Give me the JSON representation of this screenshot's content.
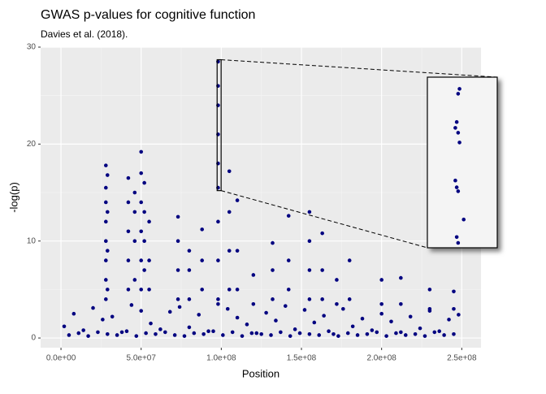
{
  "chart_data": {
    "type": "scatter",
    "title": "GWAS p-values for cognitive function",
    "subtitle": "Davies et al. (2018).",
    "x_label": "Position",
    "y_label": "-log(p)",
    "color": "#000080",
    "grid": true,
    "xlim": [
      -12700000,
      262000000
    ],
    "ylim": [
      -1,
      30
    ],
    "xticks": [
      {
        "value": 0,
        "label": "0.0e+00"
      },
      {
        "value": 50000000,
        "label": "5.0e+07"
      },
      {
        "value": 100000000,
        "label": "1.0e+08"
      },
      {
        "value": 150000000,
        "label": "1.5e+08"
      },
      {
        "value": 200000000,
        "label": "2.0e+08"
      },
      {
        "value": 250000000,
        "label": "2.5e+08"
      }
    ],
    "yticks": [
      0,
      10,
      20,
      30
    ],
    "x": [
      2000000,
      8000000,
      14000000,
      20000000,
      26000000,
      32000000,
      38000000,
      44000000,
      50000000,
      56000000,
      62000000,
      68000000,
      74000000,
      80000000,
      86000000,
      92000000,
      98000000,
      104000000,
      110000000,
      116000000,
      122000000,
      128000000,
      134000000,
      140000000,
      146000000,
      152000000,
      158000000,
      164000000,
      170000000,
      176000000,
      182000000,
      188000000,
      194000000,
      200000000,
      206000000,
      212000000,
      218000000,
      224000000,
      230000000,
      236000000,
      242000000,
      248000000,
      5000000,
      11000000,
      17000000,
      23000000,
      29000000,
      35000000,
      41000000,
      47000000,
      53000000,
      59000000,
      65000000,
      71000000,
      77000000,
      83000000,
      89000000,
      95000000,
      101000000,
      107000000,
      113000000,
      119000000,
      125000000,
      131000000,
      137000000,
      143000000,
      149000000,
      155000000,
      161000000,
      167000000,
      173000000,
      179000000,
      185000000,
      191000000,
      197000000,
      203000000,
      209000000,
      215000000,
      221000000,
      227000000,
      233000000,
      239000000,
      245000000,
      28000000,
      28000000,
      28000000,
      28000000,
      28000000,
      28000000,
      28000000,
      28000000,
      29000000,
      29000000,
      29000000,
      29000000,
      42000000,
      42000000,
      42000000,
      42000000,
      42000000,
      46000000,
      46000000,
      46000000,
      46000000,
      50000000,
      50000000,
      50000000,
      50000000,
      50000000,
      50000000,
      52000000,
      52000000,
      52000000,
      52000000,
      55000000,
      55000000,
      55000000,
      73000000,
      73000000,
      73000000,
      73000000,
      80000000,
      80000000,
      80000000,
      88000000,
      88000000,
      88000000,
      98000000,
      98000000,
      98000000,
      98000000,
      98000000,
      98000000,
      98000000,
      98000000,
      98000000,
      105000000,
      105000000,
      105000000,
      105000000,
      110000000,
      110000000,
      110000000,
      120000000,
      120000000,
      132000000,
      132000000,
      132000000,
      142000000,
      142000000,
      142000000,
      155000000,
      155000000,
      155000000,
      155000000,
      163000000,
      163000000,
      163000000,
      172000000,
      172000000,
      180000000,
      180000000,
      200000000,
      200000000,
      212000000,
      212000000,
      230000000,
      230000000,
      245000000,
      245000000
    ],
    "y": [
      1.2,
      2.5,
      0.8,
      3.1,
      1.9,
      2.2,
      0.6,
      3.4,
      2.8,
      1.5,
      0.9,
      2.7,
      3.2,
      1.1,
      2.4,
      0.7,
      3.5,
      3.0,
      2.1,
      1.4,
      0.5,
      2.6,
      1.8,
      3.3,
      0.9,
      2.9,
      1.6,
      2.3,
      0.4,
      3.0,
      1.2,
      2.0,
      0.8,
      2.5,
      1.7,
      0.6,
      2.2,
      1.0,
      2.8,
      0.7,
      1.9,
      2.4,
      0.3,
      0.5,
      0.2,
      0.6,
      0.4,
      0.3,
      0.7,
      0.2,
      0.5,
      0.4,
      0.6,
      0.3,
      0.2,
      0.5,
      0.4,
      0.7,
      0.3,
      0.6,
      0.2,
      0.5,
      0.4,
      0.3,
      0.6,
      0.2,
      0.5,
      0.4,
      0.3,
      0.7,
      0.2,
      0.5,
      0.3,
      0.4,
      0.6,
      0.2,
      0.5,
      0.3,
      0.4,
      0.2,
      0.6,
      0.3,
      0.4,
      4,
      6,
      8,
      10,
      12,
      14,
      15.5,
      17.8,
      5,
      9,
      13,
      16.8,
      5,
      8,
      11,
      14,
      16.5,
      6,
      10,
      13,
      15,
      5,
      8,
      11,
      14,
      17,
      19.2,
      7,
      10,
      13,
      16,
      5,
      8,
      12,
      4,
      7,
      10,
      12.5,
      4,
      7,
      9,
      5,
      8,
      11.2,
      4,
      8,
      12,
      15.5,
      18,
      21,
      24,
      26,
      28.5,
      5,
      9,
      13,
      17.2,
      5,
      9,
      14.2,
      3.5,
      6.5,
      4,
      7,
      9.8,
      5,
      8,
      12.6,
      4,
      7,
      10,
      13,
      4,
      7,
      10.8,
      3.5,
      6,
      4,
      8,
      3.5,
      6,
      3.5,
      6.2,
      3,
      5,
      3,
      4.8
    ],
    "zoom": {
      "xlim": [
        97400000,
        99900000
      ],
      "ylim": [
        15.2,
        28.7
      ]
    },
    "inset": {
      "xlim": [
        97400000,
        99900000
      ],
      "ylim": [
        9,
        26.5
      ],
      "x": [
        98550000,
        98500000,
        98450000,
        98400000,
        98500000,
        98550000,
        98400000,
        98450000,
        98500000,
        98700000,
        98450000,
        98500000
      ],
      "y": [
        25.3,
        24.8,
        21.9,
        21.3,
        20.8,
        19.8,
        15.9,
        15.2,
        14.8,
        11.9,
        10.1,
        9.5
      ]
    }
  }
}
